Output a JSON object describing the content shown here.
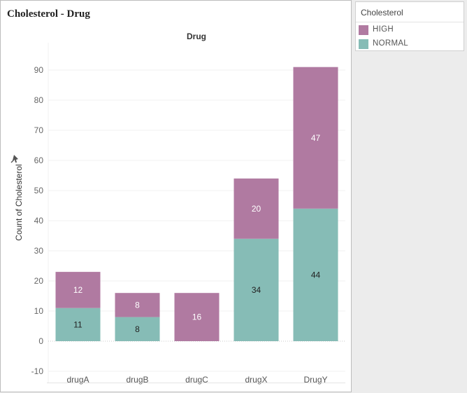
{
  "colors": {
    "HIGH": "#b07aa1",
    "NORMAL": "#86bcb6"
  },
  "legend": {
    "title": "Cholesterol",
    "items": [
      {
        "label": "HIGH",
        "color": "#b07aa1"
      },
      {
        "label": "NORMAL",
        "color": "#86bcb6"
      }
    ]
  },
  "chart_data": {
    "type": "bar",
    "stacked": true,
    "title": "Cholesterol - Drug",
    "column_header": "Drug",
    "xlabel": "",
    "ylabel": "Count of Cholesterol",
    "ylim": [
      -12,
      100
    ],
    "yticks": [
      -10,
      0,
      10,
      20,
      30,
      40,
      50,
      60,
      70,
      80,
      90
    ],
    "categories": [
      "drugA",
      "drugB",
      "drugC",
      "drugX",
      "DrugY"
    ],
    "series": [
      {
        "name": "NORMAL",
        "values": [
          11,
          8,
          0,
          34,
          44
        ]
      },
      {
        "name": "HIGH",
        "values": [
          12,
          8,
          16,
          20,
          47
        ]
      }
    ],
    "grid": true,
    "legend_position": "top-right"
  }
}
